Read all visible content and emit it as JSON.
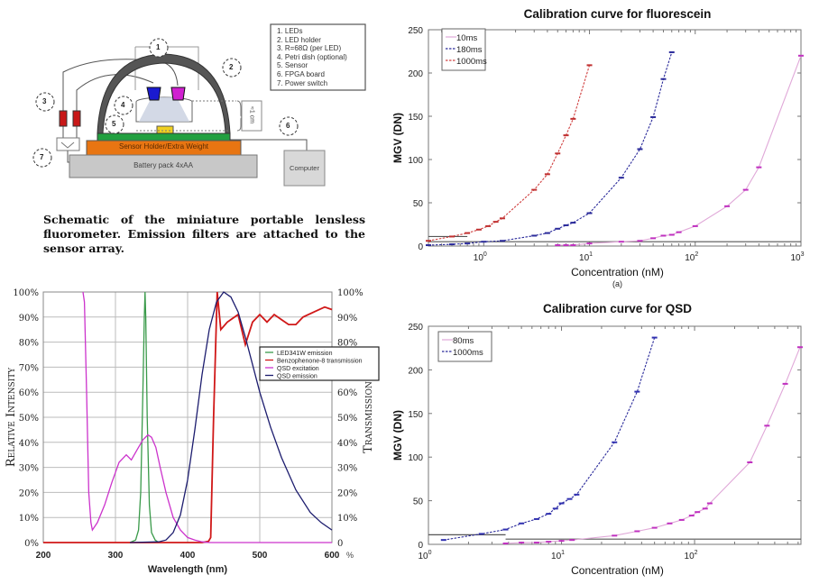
{
  "schematic": {
    "legend": [
      "1.   LEDs",
      "2.   LED holder",
      "3.   R=68Ω (per LED)",
      "4.   Petri dish (optional)",
      "5.   Sensor",
      "6.   FPGA board",
      "7.   Power switch"
    ],
    "callouts": [
      "1",
      "2",
      "3",
      "4",
      "5",
      "6",
      "7"
    ],
    "sensor_holder_label": "Sensor Holder/Extra Weight",
    "battery_label": "Battery pack 4xAA",
    "computer_label": "Computer",
    "distance_label": "≈1 cm",
    "caption": "Schematic of the miniature portable lensless fluorometer. Emission filters are attached to the sensor array."
  },
  "chart_data": [
    {
      "id": "spectra",
      "type": "line",
      "title": "",
      "xlabel": "Wavelength (nm)",
      "ylabel": "Relative Intensity",
      "ylabel_right": "Transmission",
      "xlim": [
        200,
        600
      ],
      "ylim": [
        0,
        100
      ],
      "x_ticks": [
        200,
        300,
        400,
        500,
        600
      ],
      "x_tick_labels": [
        "200",
        "300",
        "400",
        "500",
        "600"
      ],
      "y_ticks": [
        0,
        10,
        20,
        30,
        40,
        50,
        60,
        70,
        80,
        90,
        100
      ],
      "y_tick_labels": [
        "0%",
        "10%",
        "20%",
        "30%",
        "40%",
        "50%",
        "60%",
        "70%",
        "80%",
        "90%",
        "100%"
      ],
      "y_right_tick_labels": [
        "0",
        "10%",
        "20%",
        "30%",
        "40%",
        "50%",
        "60%",
        "",
        "80%",
        "90%",
        "100%"
      ],
      "right_axis_unit": "%",
      "grid": true,
      "legend_position": "right",
      "series": [
        {
          "name": "LED341W emission",
          "color": "#3a9a4a",
          "x": [
            320,
            328,
            332,
            335,
            338,
            340,
            341,
            342,
            344,
            347,
            350,
            355,
            360
          ],
          "y": [
            0,
            1,
            5,
            20,
            60,
            90,
            100,
            90,
            50,
            15,
            4,
            1,
            0
          ]
        },
        {
          "name": "Benzophenone-8 transmission",
          "color": "#d01818",
          "x": [
            200,
            420,
            429,
            432,
            436,
            441,
            446,
            455,
            470,
            480,
            490,
            500,
            510,
            520,
            530,
            540,
            550,
            560,
            575,
            590,
            600
          ],
          "y": [
            0,
            0,
            0.5,
            2,
            50,
            100,
            85,
            88,
            91,
            79,
            88,
            91,
            88,
            91,
            89,
            87,
            87,
            90,
            92,
            94,
            93
          ]
        },
        {
          "name": "QSD excitation",
          "color": "#cc33cc",
          "x": [
            255,
            257,
            260,
            263,
            266,
            268,
            275,
            285,
            295,
            305,
            315,
            322,
            330,
            338,
            345,
            350,
            356,
            362,
            370,
            380,
            390,
            400,
            410,
            420,
            430,
            600
          ],
          "y": [
            100,
            96,
            60,
            20,
            8,
            5,
            8,
            15,
            24,
            32,
            35,
            33,
            37,
            41,
            43,
            42,
            38,
            30,
            20,
            10,
            5,
            2,
            1,
            0.3,
            0,
            0
          ]
        },
        {
          "name": "QSD emission",
          "color": "#1c1c6e",
          "x": [
            320,
            360,
            370,
            380,
            390,
            400,
            410,
            420,
            430,
            440,
            450,
            460,
            470,
            480,
            490,
            500,
            515,
            530,
            550,
            570,
            585,
            600
          ],
          "y": [
            0,
            0.3,
            1,
            4,
            11,
            25,
            45,
            67,
            85,
            96,
            100,
            98,
            92,
            82,
            71,
            60,
            46,
            34,
            21,
            12,
            8,
            5
          ]
        }
      ]
    },
    {
      "id": "fluorescein",
      "type": "line",
      "title": "Calibration curve for fluorescein",
      "xlabel": "Concentration (nM)",
      "ylabel": "MGV (DN)",
      "sublabel": "(a)",
      "xscale": "log",
      "xlim": [
        0.3,
        1000
      ],
      "ylim": [
        0,
        250
      ],
      "x_ticks": [
        1,
        10,
        100,
        1000
      ],
      "x_tick_exponents": [
        "0",
        "1",
        "2",
        "3"
      ],
      "x_tick_base": "10",
      "y_ticks": [
        0,
        50,
        100,
        150,
        200,
        250
      ],
      "y_tick_labels": [
        "0",
        "50",
        "100",
        "150",
        "200",
        "250"
      ],
      "legend_position": "top-left",
      "series": [
        {
          "name": "10ms",
          "color": "#e0a8d8",
          "marker_color": "#c030c0",
          "dash": false,
          "x": [
            5,
            6,
            7,
            10,
            20,
            30,
            40,
            50,
            60,
            70,
            100,
            200,
            300,
            400,
            1000
          ],
          "y": [
            1,
            1,
            1,
            3,
            5,
            6,
            9,
            12,
            13,
            16,
            23,
            46,
            65,
            91,
            220
          ]
        },
        {
          "name": "180ms",
          "color": "#2a2a9a",
          "marker_color": "#2a2a9a",
          "dash": true,
          "x": [
            0.3,
            0.5,
            0.7,
            1,
            1.5,
            3,
            4,
            5,
            6,
            7,
            10,
            20,
            30,
            40,
            50,
            60
          ],
          "y": [
            1,
            2,
            3,
            5,
            6,
            12,
            15,
            20,
            24,
            27,
            38,
            79,
            112,
            149,
            193,
            224
          ]
        },
        {
          "name": "1000ms",
          "color": "#d04040",
          "marker_color": "#c03030",
          "dash": true,
          "x": [
            0.3,
            0.5,
            0.7,
            0.9,
            1.1,
            1.3,
            1.5,
            3,
            4,
            5,
            6,
            7,
            10
          ],
          "y": [
            6,
            11,
            15,
            19,
            23,
            28,
            32,
            65,
            83,
            107,
            128,
            147,
            209
          ]
        }
      ],
      "threshold_lines": [
        {
          "x": [
            0.3,
            0.7
          ],
          "y": 11
        },
        {
          "x": [
            0.3,
            1000
          ],
          "y": 5
        }
      ]
    },
    {
      "id": "qsd",
      "type": "line",
      "title": "Calibration curve for QSD",
      "xlabel": "Concentration (nM)",
      "ylabel": "MGV (DN)",
      "xscale": "log",
      "xlim": [
        1,
        630
      ],
      "ylim": [
        0,
        250
      ],
      "x_ticks": [
        1,
        10,
        100
      ],
      "x_tick_exponents": [
        "0",
        "1",
        "2"
      ],
      "x_tick_base": "10",
      "y_ticks": [
        0,
        50,
        100,
        150,
        200,
        250
      ],
      "y_tick_labels": [
        "0",
        "50",
        "100",
        "150",
        "200",
        "250"
      ],
      "legend_position": "top-left",
      "series": [
        {
          "name": "80ms",
          "color": "#e0a8d8",
          "marker_color": "#c030c0",
          "dash": false,
          "x": [
            3.8,
            5,
            6.5,
            8,
            10,
            12,
            25,
            37,
            50,
            65,
            80,
            95,
            105,
            120,
            130,
            260,
            350,
            480,
            620
          ],
          "y": [
            1,
            2,
            2,
            3,
            4,
            5,
            10,
            15,
            19,
            24,
            28,
            33,
            37,
            41,
            47,
            94,
            136,
            184,
            226
          ]
        },
        {
          "name": "1000ms",
          "color": "#2a2a9a",
          "marker_color": "#3030b0",
          "dash": true,
          "x": [
            1.3,
            2.5,
            3.8,
            5,
            6.5,
            8,
            9,
            10,
            11.5,
            13,
            25,
            37,
            50
          ],
          "y": [
            5,
            12,
            17,
            24,
            29,
            35,
            41,
            47,
            52,
            57,
            117,
            175,
            237
          ]
        }
      ],
      "threshold_lines": [
        {
          "x": [
            1,
            3.8
          ],
          "y": 11
        },
        {
          "x": [
            3.8,
            630
          ],
          "y": 6
        }
      ]
    }
  ]
}
